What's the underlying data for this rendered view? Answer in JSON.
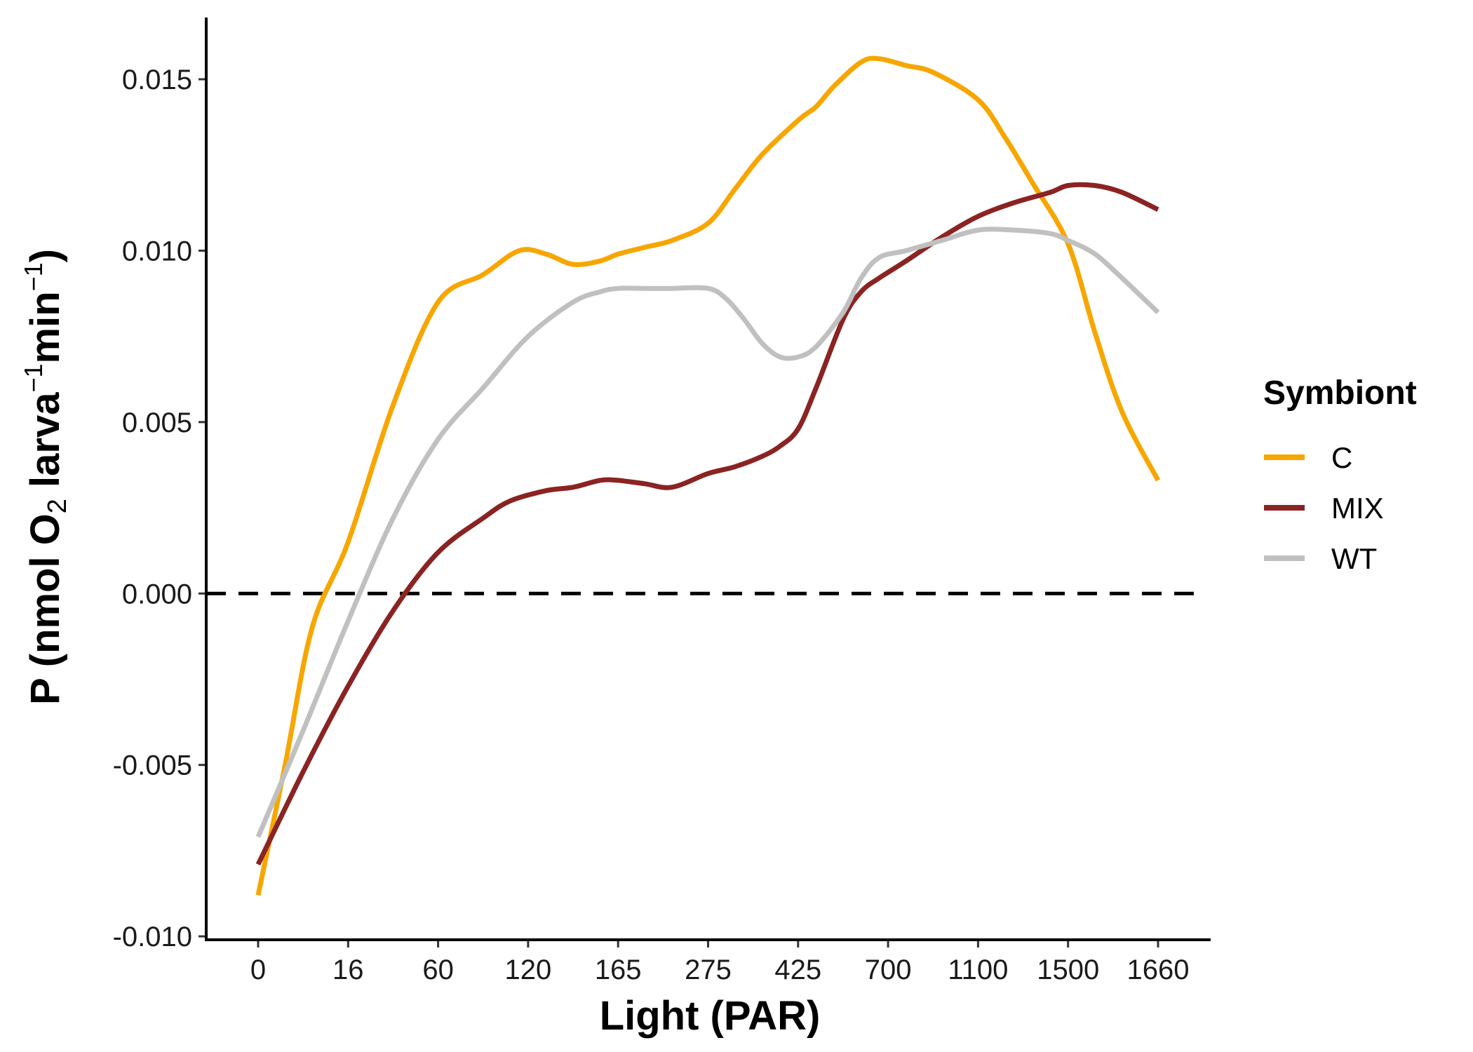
{
  "chart_data": {
    "type": "line",
    "title": "",
    "xlabel": "Light (PAR)",
    "ylabel_parts": [
      "P (nmol O",
      "2",
      " larva",
      "−1",
      "min",
      "−1",
      ")"
    ],
    "categories": [
      "0",
      "16",
      "60",
      "120",
      "165",
      "275",
      "425",
      "700",
      "1100",
      "1500",
      "1660"
    ],
    "y_ticks": [
      -0.01,
      -0.005,
      0.0,
      0.005,
      0.01,
      0.015
    ],
    "y_tick_labels": [
      "-0.010",
      "-0.005",
      "0.000",
      "0.005",
      "0.010",
      "0.015"
    ],
    "ylim": [
      -0.0101,
      0.0168
    ],
    "reference_line": {
      "y": 0.0,
      "style": "dashed",
      "color": "#000000"
    },
    "grid": false,
    "legend": {
      "title": "Symbiont",
      "position": "right"
    },
    "series": [
      {
        "name": "C",
        "color": "#F7A600",
        "x": [
          0,
          0.3,
          0.6,
          1,
          1.5,
          2,
          2.5,
          2.9,
          3.2,
          3.5,
          3.8,
          4,
          4.3,
          4.6,
          5,
          5.3,
          5.6,
          6,
          6.2,
          6.4,
          6.7,
          6.9,
          7.2,
          7.5,
          8,
          8.3,
          8.6,
          9,
          9.3,
          9.6,
          10
        ],
        "values": [
          -0.0088,
          -0.005,
          -0.001,
          0.0015,
          0.0055,
          0.0085,
          0.0093,
          0.01,
          0.0099,
          0.0096,
          0.0097,
          0.0099,
          0.0101,
          0.0103,
          0.0108,
          0.0118,
          0.0128,
          0.0138,
          0.0142,
          0.0148,
          0.0155,
          0.0156,
          0.0154,
          0.0152,
          0.0144,
          0.0133,
          0.012,
          0.0102,
          0.0076,
          0.0053,
          0.0033
        ]
      },
      {
        "name": "MIX",
        "color": "#8B2323",
        "x": [
          0,
          0.5,
          1,
          1.5,
          2,
          2.5,
          2.8,
          3.2,
          3.5,
          3.8,
          4,
          4.3,
          4.6,
          5,
          5.3,
          5.6,
          5.8,
          6,
          6.2,
          6.5,
          6.7,
          6.9,
          7.2,
          7.6,
          8,
          8.4,
          8.8,
          9,
          9.3,
          9.6,
          10
        ],
        "values": [
          -0.0079,
          -0.0052,
          -0.0027,
          -0.0005,
          0.0012,
          0.0022,
          0.0027,
          0.003,
          0.0031,
          0.0033,
          0.0033,
          0.0032,
          0.0031,
          0.0035,
          0.0037,
          0.004,
          0.0043,
          0.0048,
          0.006,
          0.008,
          0.0088,
          0.0092,
          0.0097,
          0.0104,
          0.011,
          0.0114,
          0.0117,
          0.0119,
          0.0119,
          0.0117,
          0.0112
        ]
      },
      {
        "name": "WT",
        "color": "#C0C0C0",
        "x": [
          0,
          0.5,
          1,
          1.5,
          2,
          2.5,
          3,
          3.5,
          3.8,
          4,
          4.3,
          4.6,
          5,
          5.2,
          5.4,
          5.6,
          5.8,
          6,
          6.2,
          6.5,
          6.7,
          6.9,
          7.2,
          7.6,
          8,
          8.4,
          8.8,
          9,
          9.3,
          9.6,
          10
        ],
        "values": [
          -0.0071,
          -0.004,
          -0.0008,
          0.0022,
          0.0045,
          0.006,
          0.0075,
          0.0085,
          0.0088,
          0.0089,
          0.0089,
          0.0089,
          0.0089,
          0.0086,
          0.008,
          0.0073,
          0.0069,
          0.0069,
          0.0072,
          0.0082,
          0.0092,
          0.0098,
          0.01,
          0.0103,
          0.0106,
          0.0106,
          0.0105,
          0.0103,
          0.0099,
          0.0092,
          0.0082
        ]
      }
    ]
  }
}
